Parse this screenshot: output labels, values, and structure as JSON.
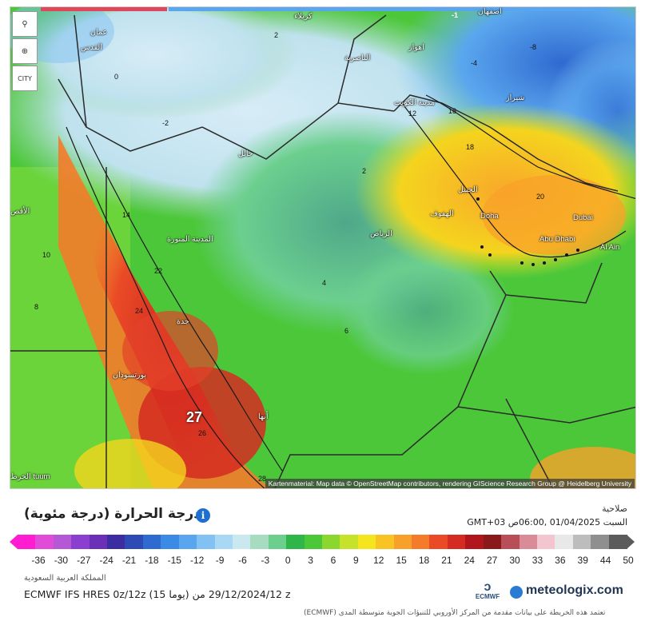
{
  "map": {
    "attribution": "Kartenmaterial: Map data © OpenStreetMap contributors, rendering GIScience Research Group @ Heidelberg University",
    "highlight_value": "27",
    "controls": [
      {
        "name": "locate-icon",
        "glyph": "⚲"
      },
      {
        "name": "zoom-icon",
        "glyph": "⊕"
      },
      {
        "name": "city-toggle",
        "glyph": "CITY"
      }
    ],
    "cities": [
      {
        "name": "city-karbala",
        "label": "كربلاء"
      },
      {
        "name": "city-isfahan",
        "label": "اصفهان"
      },
      {
        "name": "city-amman",
        "label": "عمان"
      },
      {
        "name": "city-jerusalem",
        "label": "القدس"
      },
      {
        "name": "city-nasiriyah",
        "label": "الناصرية"
      },
      {
        "name": "city-ahvaz",
        "label": "اهواز"
      },
      {
        "name": "city-kuwait",
        "label": "مدينة الكويت"
      },
      {
        "name": "city-shiraz",
        "label": "شيراز"
      },
      {
        "name": "city-hail",
        "label": "حائل"
      },
      {
        "name": "city-jubail",
        "label": "الجبيل"
      },
      {
        "name": "city-hofuf",
        "label": "الهفوف"
      },
      {
        "name": "city-doha",
        "label": "Doha"
      },
      {
        "name": "city-dubai",
        "label": "Dubai"
      },
      {
        "name": "city-abudhabi",
        "label": "Abu Dhabi"
      },
      {
        "name": "city-alain",
        "label": "Al Ain"
      },
      {
        "name": "city-riyadh",
        "label": "الرياض"
      },
      {
        "name": "city-madinah",
        "label": "المدينة المنورة"
      },
      {
        "name": "city-jeddah",
        "label": "جدة"
      },
      {
        "name": "city-portsudan",
        "label": "بورتسودان"
      },
      {
        "name": "city-abha",
        "label": "أبها"
      },
      {
        "name": "city-luxor",
        "label": "الأقص"
      },
      {
        "name": "city-khartoum",
        "label": "الخرط tuum"
      }
    ],
    "values": [
      "2",
      "-1",
      "-4",
      "-8",
      "0",
      "-2",
      "2",
      "6",
      "16",
      "12",
      "18",
      "20",
      "24",
      "22",
      "14",
      "10",
      "8",
      "4",
      "26",
      "28"
    ]
  },
  "legend": {
    "title": "درجة الحرارة (درجة مئوية)",
    "info_icon": "i",
    "ticks": [
      "-36",
      "-30",
      "-27",
      "-24",
      "-21",
      "-18",
      "-15",
      "-12",
      "-9",
      "-6",
      "-3",
      "0",
      "3",
      "6",
      "9",
      "12",
      "15",
      "18",
      "21",
      "24",
      "27",
      "30",
      "33",
      "36",
      "39",
      "44",
      "50"
    ],
    "colors": [
      "#ff1dd2",
      "#e04bd8",
      "#b558d6",
      "#8b3fd0",
      "#6b2fb8",
      "#3c2ea0",
      "#2e4ab4",
      "#2f6ad0",
      "#3a8ae6",
      "#5aa6ee",
      "#82c2f2",
      "#a8d8f3",
      "#c9e8f0",
      "#a8dcc0",
      "#6ccf8e",
      "#2fb548",
      "#4cc73a",
      "#8bd72f",
      "#c6e22a",
      "#f4e51e",
      "#f9c423",
      "#f8a12a",
      "#f47b2a",
      "#ea4b26",
      "#d42c21",
      "#b0161b",
      "#8a1a1a",
      "#b84f58",
      "#d98c98",
      "#f3c6cf",
      "#e8e8e8",
      "#bdbdbd",
      "#8f8f8f",
      "#5b5b5b"
    ]
  },
  "datetime": {
    "label": "صلاحية",
    "value": "GMT+03 السبت 01/04/2025 ,06:00ص"
  },
  "info": {
    "region": "المملكة العربية السعودية",
    "model": "ECMWF IFS HRES 0z/12z (15 يوما) 29/12/2024/12 من z"
  },
  "brand": {
    "ecmwf_label": "ECMWF",
    "site": "meteologix.com"
  },
  "footer": "(ECMWF) تعتمد هذه الخريطة على بيانات مقدمة من المركز الأوروبي للتنبؤات الجوية متوسطة المدى"
}
